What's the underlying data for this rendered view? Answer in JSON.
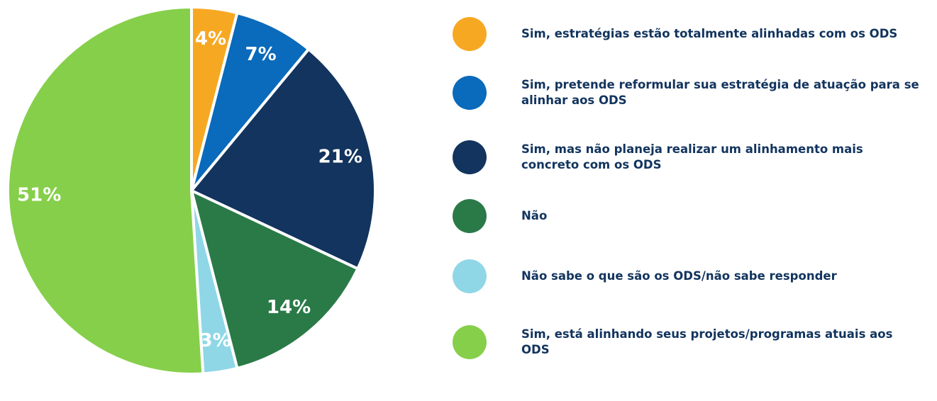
{
  "chart_data": {
    "type": "pie",
    "categories": [
      "Sim, estratégias estão totalmente alinhadas com os ODS",
      "Sim, pretende reformular sua estratégia de atuação para se alinhar aos ODS",
      "Sim, mas não planeja realizar um alinhamento mais concreto com os ODS",
      "Não",
      "Não sabe o que são os ODS/não sabe responder",
      "Sim, está alinhando seus projetos/programas atuais aos ODS"
    ],
    "values": [
      4,
      7,
      21,
      14,
      3,
      51
    ],
    "value_labels": [
      "4%",
      "7%",
      "21%",
      "14%",
      "3%",
      "51%"
    ],
    "colors": [
      "#f7a823",
      "#0a6abb",
      "#12345e",
      "#2a7a48",
      "#8fd7e6",
      "#86cf4a"
    ],
    "legend": "right"
  }
}
